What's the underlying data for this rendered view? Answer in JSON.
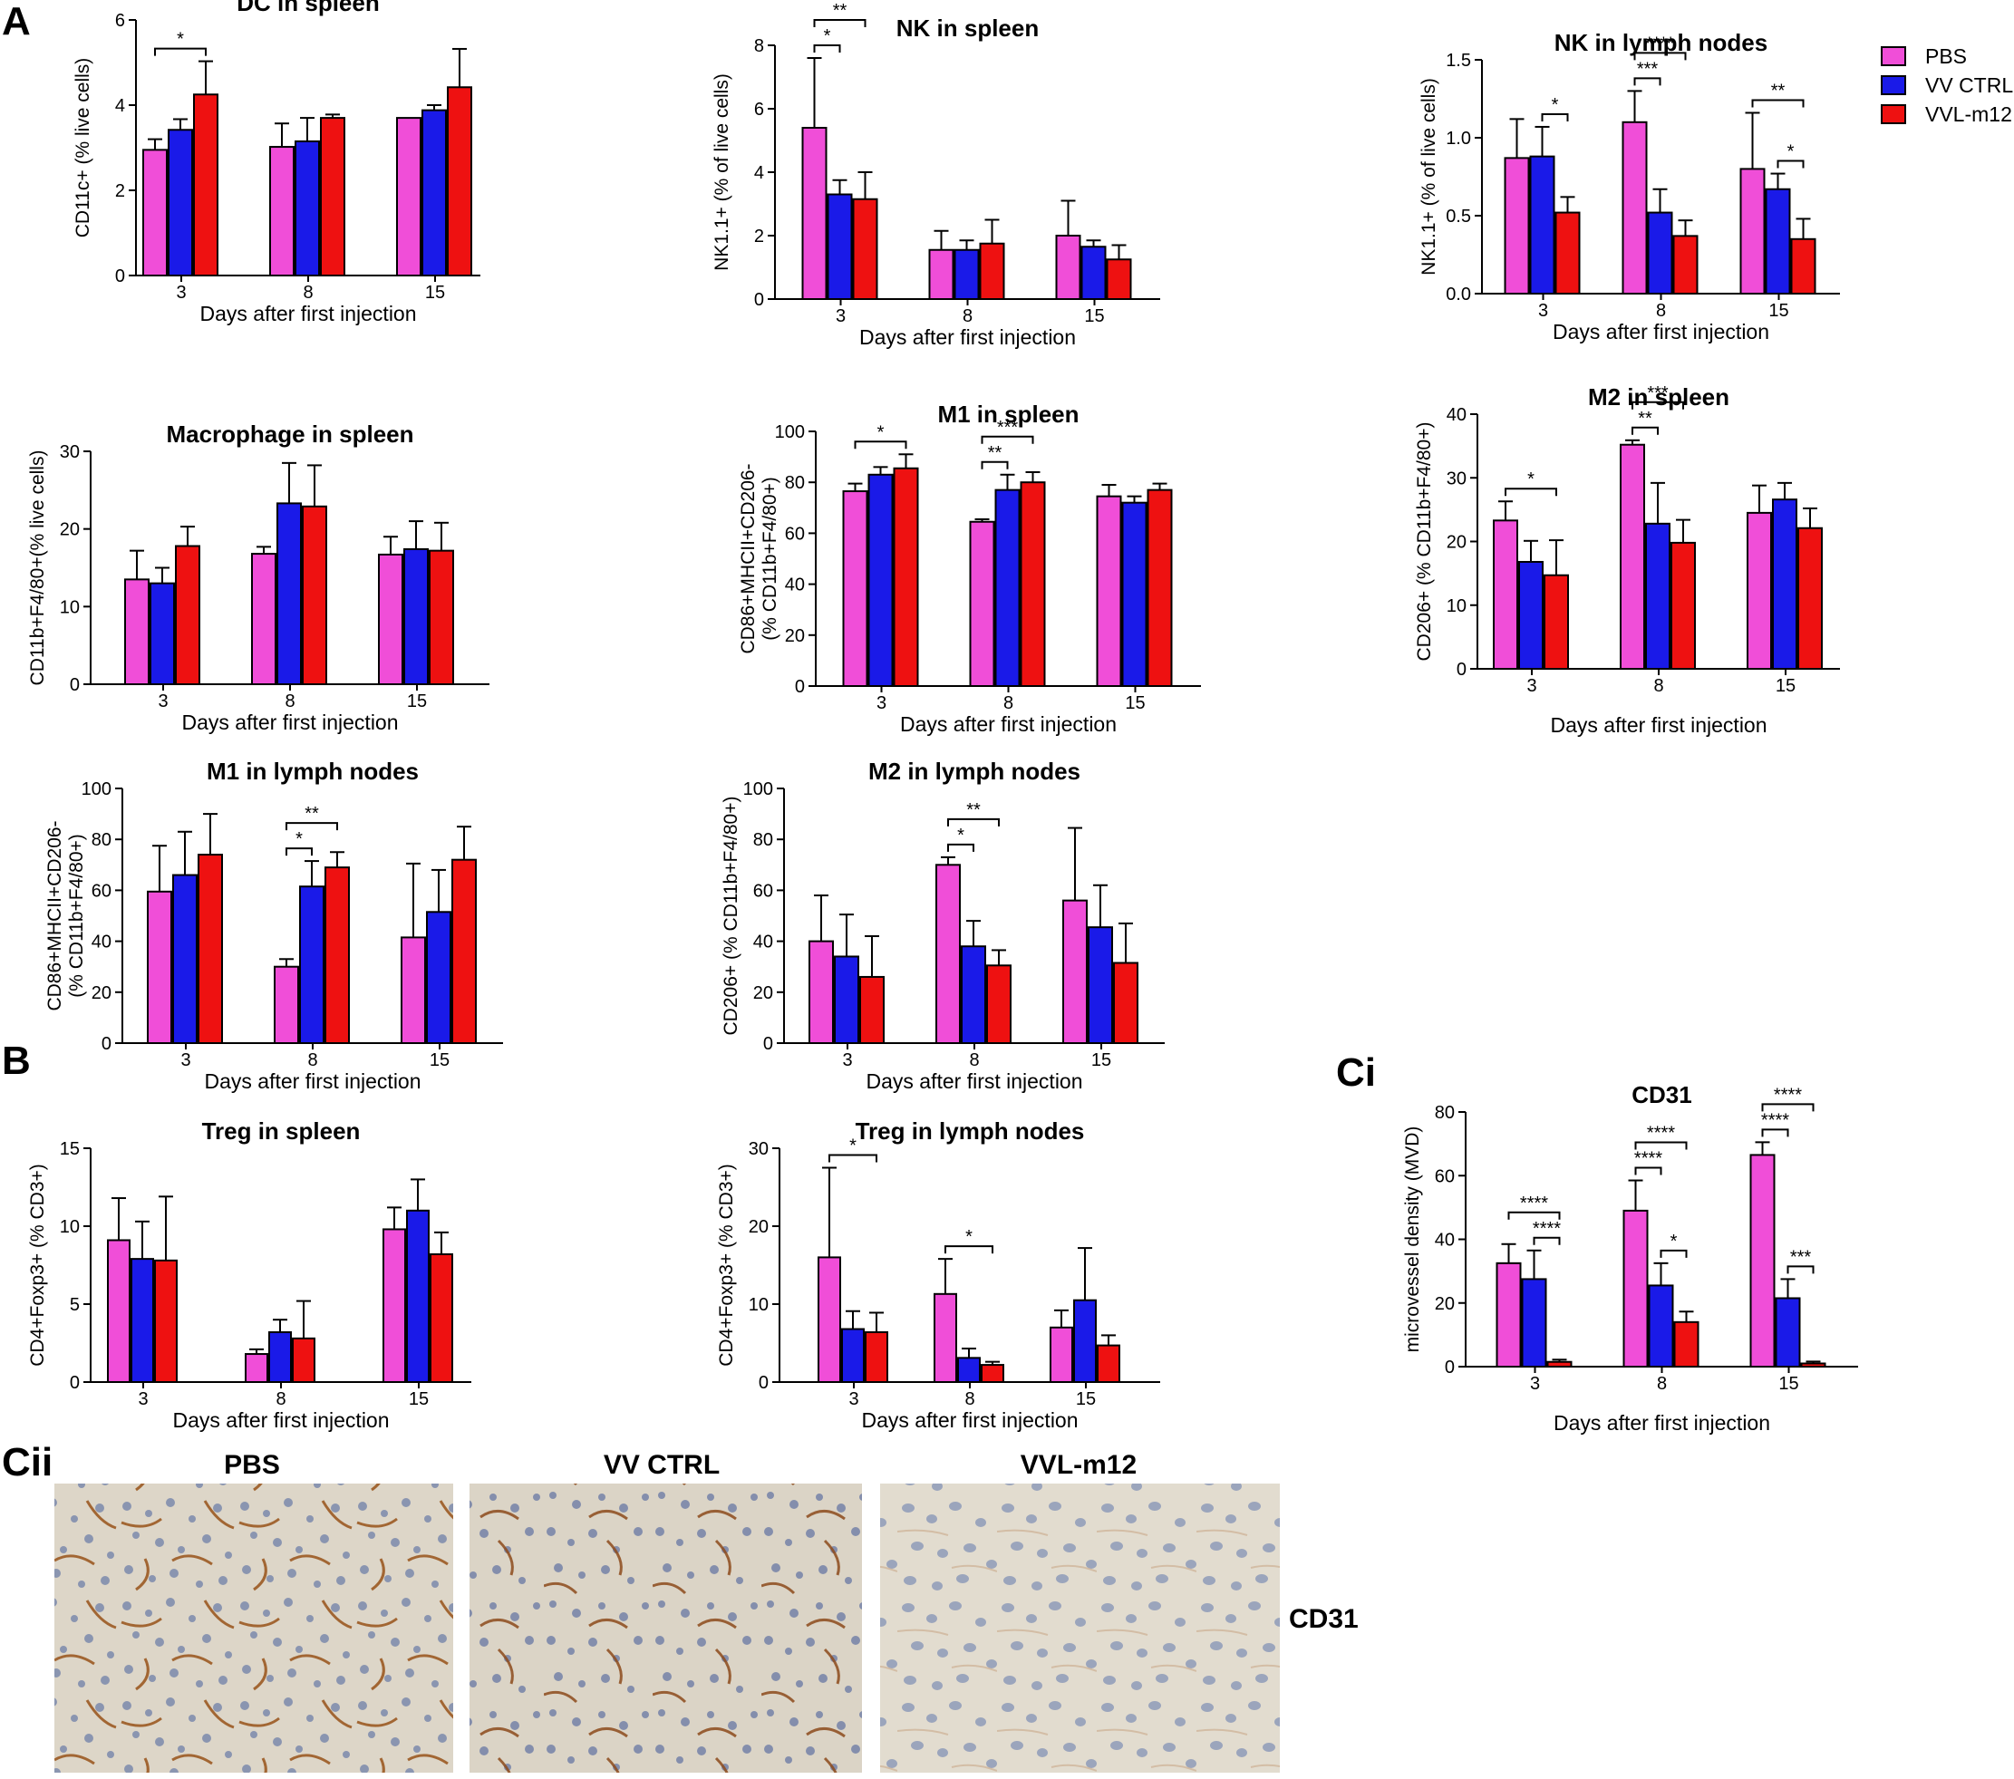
{
  "panel_labels": {
    "A": "A",
    "B": "B",
    "Ci": "Ci",
    "Cii": "Cii"
  },
  "colors": {
    "PBS": "#f04ed8",
    "VV CTRL": "#1a1ae8",
    "VVL-m12": "#ee1111"
  },
  "legend": [
    {
      "name": "PBS",
      "color": "#f04ed8"
    },
    {
      "name": "VV CTRL",
      "color": "#1a1ae8"
    },
    {
      "name": "VVL-m12",
      "color": "#ee1111"
    }
  ],
  "chart_data": [
    {
      "id": "dc-spleen",
      "type": "bar",
      "title": "DC in spleen",
      "ylabel": "CD11c+ (% live cells)",
      "xlabel": "Days after first injection",
      "categories": [
        "3",
        "8",
        "15"
      ],
      "ylim": [
        0,
        6
      ],
      "yticks": [
        "0",
        "2",
        "4",
        "6"
      ],
      "series": [
        {
          "name": "PBS",
          "values": [
            2.95,
            3.02,
            3.7
          ],
          "errors": [
            0.25,
            0.55,
            0.0
          ]
        },
        {
          "name": "VV CTRL",
          "values": [
            3.42,
            3.15,
            3.88
          ],
          "errors": [
            0.25,
            0.55,
            0.12
          ]
        },
        {
          "name": "VVL-m12",
          "values": [
            4.25,
            3.7,
            4.42
          ],
          "errors": [
            0.78,
            0.08,
            0.9
          ]
        }
      ],
      "significance": [
        {
          "group": 0,
          "from": 0,
          "to": 2,
          "label": "*"
        }
      ]
    },
    {
      "id": "nk-spleen",
      "type": "bar",
      "title": "NK in spleen",
      "ylabel": "NK1.1+ (% of live cells)",
      "xlabel": "Days after first injection",
      "categories": [
        "3",
        "8",
        "15"
      ],
      "ylim": [
        0,
        8
      ],
      "yticks": [
        "0",
        "2",
        "4",
        "6",
        "8"
      ],
      "series": [
        {
          "name": "PBS",
          "values": [
            5.4,
            1.55,
            2.0
          ],
          "errors": [
            2.2,
            0.6,
            1.1
          ]
        },
        {
          "name": "VV CTRL",
          "values": [
            3.3,
            1.55,
            1.65
          ],
          "errors": [
            0.45,
            0.3,
            0.2
          ]
        },
        {
          "name": "VVL-m12",
          "values": [
            3.15,
            1.75,
            1.25
          ],
          "errors": [
            0.85,
            0.75,
            0.45
          ]
        }
      ],
      "significance": [
        {
          "group": 0,
          "from": 0,
          "to": 1,
          "label": "*"
        },
        {
          "group": 0,
          "from": 0,
          "to": 2,
          "label": "**"
        }
      ]
    },
    {
      "id": "nk-ln",
      "type": "bar",
      "title": "NK in lymph nodes",
      "ylabel": "NK1.1+ (% of live cells)",
      "xlabel": "Days after first injection",
      "categories": [
        "3",
        "8",
        "15"
      ],
      "ylim": [
        0,
        1.5
      ],
      "yticks": [
        "0.0",
        "0.5",
        "1.0",
        "1.5"
      ],
      "series": [
        {
          "name": "PBS",
          "values": [
            0.87,
            1.1,
            0.8
          ],
          "errors": [
            0.25,
            0.2,
            0.36
          ]
        },
        {
          "name": "VV CTRL",
          "values": [
            0.88,
            0.52,
            0.67
          ],
          "errors": [
            0.19,
            0.15,
            0.1
          ]
        },
        {
          "name": "VVL-m12",
          "values": [
            0.52,
            0.37,
            0.35
          ],
          "errors": [
            0.1,
            0.1,
            0.13
          ]
        }
      ],
      "significance": [
        {
          "group": 0,
          "from": 1,
          "to": 2,
          "label": "*"
        },
        {
          "group": 1,
          "from": 0,
          "to": 1,
          "label": "***"
        },
        {
          "group": 1,
          "from": 0,
          "to": 2,
          "label": "****"
        },
        {
          "group": 2,
          "from": 1,
          "to": 2,
          "label": "*"
        },
        {
          "group": 2,
          "from": 0,
          "to": 2,
          "label": "**"
        }
      ]
    },
    {
      "id": "mac-spleen",
      "type": "bar",
      "title": "Macrophage in spleen",
      "ylabel": "CD11b+F4/80+(% live cells)",
      "xlabel": "Days after first injection",
      "categories": [
        "3",
        "8",
        "15"
      ],
      "ylim": [
        0,
        30
      ],
      "yticks": [
        "0",
        "10",
        "20",
        "30"
      ],
      "series": [
        {
          "name": "PBS",
          "values": [
            13.5,
            16.8,
            16.7
          ],
          "errors": [
            3.7,
            0.9,
            2.3
          ]
        },
        {
          "name": "VV CTRL",
          "values": [
            13.0,
            23.3,
            17.4
          ],
          "errors": [
            2.0,
            5.2,
            3.6
          ]
        },
        {
          "name": "VVL-m12",
          "values": [
            17.8,
            22.9,
            17.2
          ],
          "errors": [
            2.5,
            5.3,
            3.6
          ]
        }
      ],
      "significance": []
    },
    {
      "id": "m1-spleen",
      "type": "bar",
      "title": "M1 in spleen",
      "ylabel": "CD86+MHCII+CD206-",
      "ylabel2": "(% CD11b+F4/80+)",
      "xlabel": "Days after first injection",
      "categories": [
        "3",
        "8",
        "15"
      ],
      "ylim": [
        0,
        100
      ],
      "yticks": [
        "0",
        "20",
        "40",
        "60",
        "80",
        "100"
      ],
      "series": [
        {
          "name": "PBS",
          "values": [
            76.5,
            64.5,
            74.5
          ],
          "errors": [
            3.0,
            1.0,
            4.5
          ]
        },
        {
          "name": "VV CTRL",
          "values": [
            83.0,
            77.0,
            72.0
          ],
          "errors": [
            3.0,
            6.0,
            2.5
          ]
        },
        {
          "name": "VVL-m12",
          "values": [
            85.5,
            80.0,
            77.0
          ],
          "errors": [
            5.5,
            4.0,
            2.5
          ]
        }
      ],
      "significance": [
        {
          "group": 0,
          "from": 0,
          "to": 2,
          "label": "*"
        },
        {
          "group": 1,
          "from": 0,
          "to": 1,
          "label": "**"
        },
        {
          "group": 1,
          "from": 0,
          "to": 2,
          "label": "***"
        }
      ]
    },
    {
      "id": "m2-spleen",
      "type": "bar",
      "title": "M2 in spleen",
      "ylabel": "CD206+ (%  CD11b+F4/80+)",
      "xlabel": "Days after first injection",
      "categories": [
        "3",
        "8",
        "15"
      ],
      "ylim": [
        0,
        40
      ],
      "yticks": [
        "0",
        "10",
        "20",
        "30",
        "40"
      ],
      "series": [
        {
          "name": "PBS",
          "values": [
            23.3,
            35.2,
            24.5
          ],
          "errors": [
            3.0,
            0.7,
            4.3
          ]
        },
        {
          "name": "VV CTRL",
          "values": [
            16.8,
            22.8,
            26.6
          ],
          "errors": [
            3.3,
            6.4,
            2.6
          ]
        },
        {
          "name": "VVL-m12",
          "values": [
            14.7,
            19.8,
            22.1
          ],
          "errors": [
            5.5,
            3.6,
            3.1
          ]
        }
      ],
      "significance": [
        {
          "group": 0,
          "from": 0,
          "to": 2,
          "label": "*"
        },
        {
          "group": 1,
          "from": 0,
          "to": 1,
          "label": "**"
        },
        {
          "group": 1,
          "from": 0,
          "to": 2,
          "label": "***"
        }
      ]
    },
    {
      "id": "m1-ln",
      "type": "bar",
      "title": "M1 in lymph nodes",
      "ylabel": "CD86+MHCII+CD206-",
      "ylabel2": "(% CD11b+F4/80+)",
      "xlabel": "Days after first injection",
      "categories": [
        "3",
        "8",
        "15"
      ],
      "ylim": [
        0,
        100
      ],
      "yticks": [
        "0",
        "20",
        "40",
        "60",
        "80",
        "100"
      ],
      "series": [
        {
          "name": "PBS",
          "values": [
            59.5,
            30.0,
            41.5
          ],
          "errors": [
            18.0,
            3.0,
            29.0
          ]
        },
        {
          "name": "VV CTRL",
          "values": [
            66.0,
            61.5,
            51.5
          ],
          "errors": [
            17.0,
            10.0,
            16.5
          ]
        },
        {
          "name": "VVL-m12",
          "values": [
            74.0,
            69.0,
            72.0
          ],
          "errors": [
            16.0,
            6.0,
            13.0
          ]
        }
      ],
      "significance": [
        {
          "group": 1,
          "from": 0,
          "to": 1,
          "label": "*"
        },
        {
          "group": 1,
          "from": 0,
          "to": 2,
          "label": "**"
        }
      ]
    },
    {
      "id": "m2-ln",
      "type": "bar",
      "title": "M2 in lymph nodes",
      "ylabel": "CD206+ (% CD11b+F4/80+)",
      "xlabel": "Days after first injection",
      "categories": [
        "3",
        "8",
        "15"
      ],
      "ylim": [
        0,
        100
      ],
      "yticks": [
        "0",
        "20",
        "40",
        "60",
        "80",
        "100"
      ],
      "series": [
        {
          "name": "PBS",
          "values": [
            40.0,
            70.0,
            56.0
          ],
          "errors": [
            18.0,
            3.0,
            28.5
          ]
        },
        {
          "name": "VV CTRL",
          "values": [
            34.0,
            38.0,
            45.5
          ],
          "errors": [
            16.5,
            10.0,
            16.5
          ]
        },
        {
          "name": "VVL-m12",
          "values": [
            26.0,
            30.5,
            31.5
          ],
          "errors": [
            16.0,
            6.0,
            15.5
          ]
        }
      ],
      "significance": [
        {
          "group": 1,
          "from": 0,
          "to": 1,
          "label": "*"
        },
        {
          "group": 1,
          "from": 0,
          "to": 2,
          "label": "**"
        }
      ]
    },
    {
      "id": "cd31",
      "type": "bar",
      "title": "CD31",
      "ylabel": "microvessel density (MVD)",
      "xlabel": "Days after first injection",
      "categories": [
        "3",
        "8",
        "15"
      ],
      "ylim": [
        0,
        80
      ],
      "yticks": [
        "0",
        "20",
        "40",
        "60",
        "80"
      ],
      "series": [
        {
          "name": "PBS",
          "values": [
            32.5,
            49.0,
            66.5
          ],
          "errors": [
            6.0,
            9.5,
            4.0
          ]
        },
        {
          "name": "VV CTRL",
          "values": [
            27.5,
            25.5,
            21.5
          ],
          "errors": [
            9.0,
            7.0,
            6.0
          ]
        },
        {
          "name": "VVL-m12",
          "values": [
            1.5,
            14.0,
            1.0
          ],
          "errors": [
            0.7,
            3.3,
            0.6
          ]
        }
      ],
      "significance": [
        {
          "group": 0,
          "from": 1,
          "to": 2,
          "label": "****"
        },
        {
          "group": 0,
          "from": 0,
          "to": 2,
          "label": "****"
        },
        {
          "group": 1,
          "from": 1,
          "to": 2,
          "label": "*"
        },
        {
          "group": 1,
          "from": 0,
          "to": 1,
          "label": "****"
        },
        {
          "group": 1,
          "from": 0,
          "to": 2,
          "label": "****"
        },
        {
          "group": 2,
          "from": 1,
          "to": 2,
          "label": "***"
        },
        {
          "group": 2,
          "from": 0,
          "to": 1,
          "label": "****"
        },
        {
          "group": 2,
          "from": 0,
          "to": 2,
          "label": "****"
        }
      ]
    },
    {
      "id": "treg-spleen",
      "type": "bar",
      "title": "Treg in spleen",
      "ylabel": "CD4+Foxp3+ (% CD3+)",
      "xlabel": "Days after first injection",
      "categories": [
        "3",
        "8",
        "15"
      ],
      "ylim": [
        0,
        15
      ],
      "yticks": [
        "0",
        "5",
        "10",
        "15"
      ],
      "series": [
        {
          "name": "PBS",
          "values": [
            9.1,
            1.8,
            9.8
          ],
          "errors": [
            2.7,
            0.3,
            1.4
          ]
        },
        {
          "name": "VV CTRL",
          "values": [
            7.9,
            3.2,
            11.0
          ],
          "errors": [
            2.4,
            0.8,
            2.0
          ]
        },
        {
          "name": "VVL-m12",
          "values": [
            7.8,
            2.8,
            8.2
          ],
          "errors": [
            4.1,
            2.4,
            1.4
          ]
        }
      ],
      "significance": []
    },
    {
      "id": "treg-ln",
      "type": "bar",
      "title": "Treg in lymph nodes",
      "ylabel": "CD4+Foxp3+ (% CD3+)",
      "xlabel": "Days after first injection",
      "categories": [
        "3",
        "8",
        "15"
      ],
      "ylim": [
        0,
        30
      ],
      "yticks": [
        "0",
        "10",
        "20",
        "30"
      ],
      "series": [
        {
          "name": "PBS",
          "values": [
            16.0,
            11.3,
            7.0
          ],
          "errors": [
            11.5,
            4.5,
            2.2
          ]
        },
        {
          "name": "VV CTRL",
          "values": [
            6.8,
            3.1,
            10.5
          ],
          "errors": [
            2.3,
            1.2,
            6.7
          ]
        },
        {
          "name": "VVL-m12",
          "values": [
            6.4,
            2.2,
            4.7
          ],
          "errors": [
            2.5,
            0.4,
            1.3
          ]
        }
      ],
      "significance": [
        {
          "group": 0,
          "from": 0,
          "to": 2,
          "label": "*"
        },
        {
          "group": 1,
          "from": 0,
          "to": 2,
          "label": "*"
        }
      ]
    }
  ],
  "micrographs": {
    "titles": [
      "PBS",
      "VV CTRL",
      "VVL-m12"
    ],
    "row_label": "CD31"
  }
}
